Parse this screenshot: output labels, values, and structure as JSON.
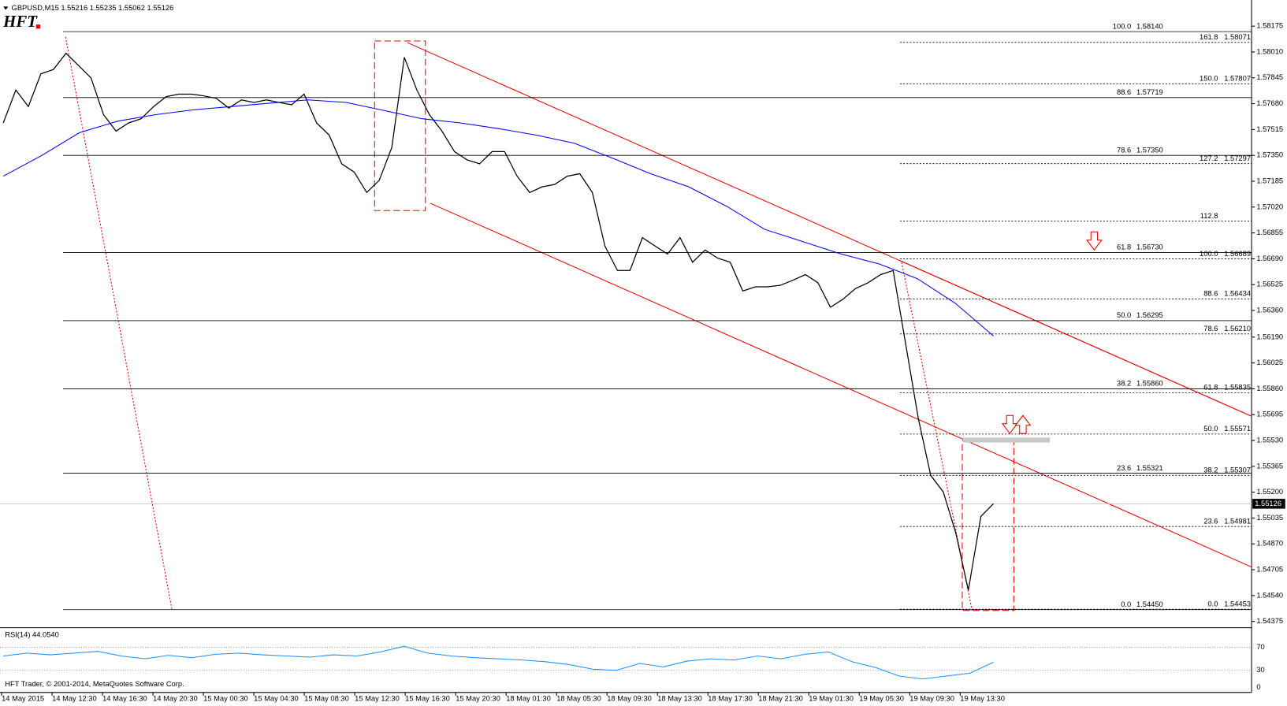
{
  "logo": "HFT",
  "copyright": "HFT Trader, © 2001-2014, MetaQuotes Software Corp.",
  "chart_data": [
    {
      "type": "line",
      "title": "GBPUSD,M15 1.55216 1.55235 1.55062 1.55126",
      "x_labels": [
        "14 May 2015",
        "14 May 12:30",
        "14 May 16:30",
        "14 May 20:30",
        "15 May 00:30",
        "15 May 04:30",
        "15 May 08:30",
        "15 May 12:30",
        "15 May 16:30",
        "15 May 20:30",
        "18 May 01:30",
        "18 May 05:30",
        "18 May 09:30",
        "18 May 13:30",
        "18 May 17:30",
        "18 May 21:30",
        "19 May 01:30",
        "19 May 05:30",
        "19 May 09:30",
        "19 May 13:30"
      ],
      "series": [
        {
          "color": "#000000",
          "values": [
            1.57557,
            1.57767,
            1.57662,
            1.57871,
            1.57898,
            1.58002,
            1.57924,
            1.57845,
            1.5761,
            1.57505,
            1.57557,
            1.57584,
            1.57662,
            1.57725,
            1.57741,
            1.57741,
            1.5773,
            1.57714,
            1.57652,
            1.57704,
            1.57688,
            1.57704,
            1.57688,
            1.57673,
            1.57741,
            1.57557,
            1.57479,
            1.57296,
            1.57243,
            1.57113,
            1.57191,
            1.574,
            1.57976,
            1.57767,
            1.5761,
            1.57505,
            1.57374,
            1.57322,
            1.57296,
            1.57374,
            1.57374,
            1.57217,
            1.57113,
            1.57149,
            1.57165,
            1.57217,
            1.57233,
            1.57113,
            1.56772,
            1.56615,
            1.56615,
            1.56825,
            1.56772,
            1.5672,
            1.56825,
            1.56668,
            1.56746,
            1.56694,
            1.56668,
            1.56484,
            1.56511,
            1.56511,
            1.56521,
            1.56553,
            1.56589,
            1.56537,
            1.5638,
            1.56432,
            1.565,
            1.56537,
            1.56589,
            1.56615,
            1.56144,
            1.55673,
            1.55307,
            1.55202,
            1.5494,
            1.54574,
            1.55045,
            1.55126
          ]
        },
        {
          "color": "#0000ff",
          "values": [
            1.57217,
            1.57348,
            1.57495,
            1.57568,
            1.5761,
            1.57641,
            1.57662,
            1.57683,
            1.57704,
            1.57688,
            1.57636,
            1.57584,
            1.57557,
            1.57521,
            1.57479,
            1.57427,
            1.57332,
            1.57233,
            1.57149,
            1.57024,
            1.56877,
            1.56799,
            1.5672,
            1.56657,
            1.56563,
            1.56406,
            1.56197
          ]
        }
      ],
      "ylim": [
        1.5434,
        1.583
      ],
      "yticks": [
        {
          "value": 1.58175,
          "label": "1.58175"
        },
        {
          "value": 1.5801,
          "label": "1.58010"
        },
        {
          "value": 1.57845,
          "label": "1.57845"
        },
        {
          "value": 1.5768,
          "label": "1.57680"
        },
        {
          "value": 1.57515,
          "label": "1.57515"
        },
        {
          "value": 1.5735,
          "label": "1.57350"
        },
        {
          "value": 1.57185,
          "label": "1.57185"
        },
        {
          "value": 1.5702,
          "label": "1.57020"
        },
        {
          "value": 1.56855,
          "label": "1.56855"
        },
        {
          "value": 1.5669,
          "label": "1.56690"
        },
        {
          "value": 1.56525,
          "label": "1.56525"
        },
        {
          "value": 1.5636,
          "label": "1.56360"
        },
        {
          "value": 1.5619,
          "label": "1.56190"
        },
        {
          "value": 1.56025,
          "label": "1.56025"
        },
        {
          "value": 1.5586,
          "label": "1.55860"
        },
        {
          "value": 1.55695,
          "label": "1.55695"
        },
        {
          "value": 1.5553,
          "label": "1.55530"
        },
        {
          "value": 1.55365,
          "label": "1.55365"
        },
        {
          "value": 1.552,
          "label": "1.55200"
        },
        {
          "value": 1.55035,
          "label": "1.55035"
        },
        {
          "value": 1.5487,
          "label": "1.54870"
        },
        {
          "value": 1.54705,
          "label": "1.54705"
        },
        {
          "value": 1.5454,
          "label": "1.54540"
        },
        {
          "value": 1.54375,
          "label": "1.54375"
        }
      ],
      "current_price": {
        "value": 1.55126,
        "label": "1.55126"
      },
      "fib_retracement": [
        {
          "ratio": "100.0",
          "price": {
            "value": 1.5814,
            "label": "1.58140"
          }
        },
        {
          "ratio": "88.6",
          "price": {
            "value": 1.57719,
            "label": "1.57719"
          }
        },
        {
          "ratio": "78.6",
          "price": {
            "value": 1.5735,
            "label": "1.57350"
          }
        },
        {
          "ratio": "61.8",
          "price": {
            "value": 1.5673,
            "label": "1.56730"
          }
        },
        {
          "ratio": "50.0",
          "price": {
            "value": 1.56295,
            "label": "1.56295"
          }
        },
        {
          "ratio": "38.2",
          "price": {
            "value": 1.5586,
            "label": "1.55860"
          }
        },
        {
          "ratio": "23.6",
          "price": {
            "value": 1.55321,
            "label": "1.55321"
          }
        },
        {
          "ratio": "0.0",
          "price": {
            "value": 1.5445,
            "label": "1.54450"
          }
        }
      ],
      "fib_extension": [
        {
          "ratio": "161.8",
          "price": {
            "value": 1.58071,
            "label": "1.58071"
          }
        },
        {
          "ratio": "150.0",
          "price": {
            "value": 1.57807,
            "label": "1.57807"
          }
        },
        {
          "ratio": "127.2",
          "price": {
            "value": 1.57297,
            "label": "1.57297"
          }
        },
        {
          "ratio": "112.8",
          "price": {
            "value": 1.5693
          }
        },
        {
          "ratio": "100.0",
          "price": {
            "value": 1.56689,
            "label": "1.56689"
          }
        },
        {
          "ratio": "88.6",
          "price": {
            "value": 1.56434,
            "label": "1.56434"
          }
        },
        {
          "ratio": "78.6",
          "price": {
            "value": 1.5621,
            "label": "1.56210"
          }
        },
        {
          "ratio": "61.8",
          "price": {
            "value": 1.55835,
            "label": "1.55835"
          }
        },
        {
          "ratio": "50.0",
          "price": {
            "value": 1.55571,
            "label": "1.55571"
          }
        },
        {
          "ratio": "38.2",
          "price": {
            "value": 1.55307,
            "label": "1.55307"
          }
        },
        {
          "ratio": "23.6",
          "price": {
            "value": 1.54981,
            "label": "1.54981"
          }
        },
        {
          "ratio": "0.0",
          "price": {
            "value": 1.54453,
            "label": "1.54453"
          }
        }
      ]
    },
    {
      "type": "line",
      "title": "RSI(14) 44.0540",
      "color": "#1e90ff",
      "values": [
        55,
        60,
        57,
        60,
        63,
        55,
        50,
        56,
        52,
        58,
        60,
        57,
        55,
        53,
        57,
        55,
        62,
        72,
        60,
        55,
        52,
        50,
        48,
        45,
        40,
        32,
        30,
        42,
        36,
        46,
        50,
        48,
        55,
        50,
        58,
        62,
        45,
        35,
        20,
        15,
        20,
        25,
        44.054
      ],
      "ylim": [
        -5.7,
        101.4
      ],
      "yticks": [
        70,
        30,
        0
      ]
    }
  ]
}
